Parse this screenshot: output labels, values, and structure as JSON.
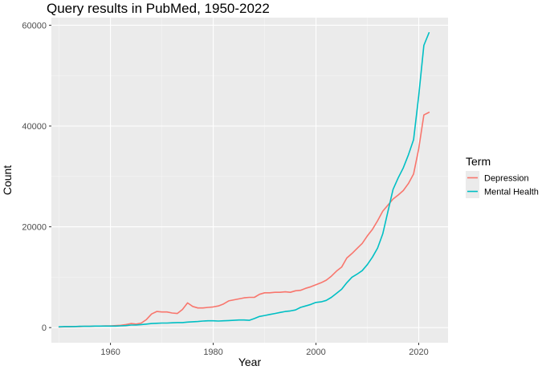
{
  "chart_data": {
    "type": "line",
    "title": "Query results in PubMed, 1950-2022",
    "xlabel": "Year",
    "ylabel": "Count",
    "xlim": [
      1948.5,
      2025.7
    ],
    "ylim": [
      -3000,
      61500
    ],
    "x_ticks": [
      1960,
      1980,
      2000,
      2020
    ],
    "y_ticks": [
      0,
      20000,
      40000,
      60000
    ],
    "y_tick_labels": [
      "0",
      "20000",
      "40000",
      "60000"
    ],
    "grid": true,
    "legend": {
      "title": "Term",
      "position": "right",
      "entries": [
        "Depression",
        "Mental Health"
      ]
    },
    "series": [
      {
        "name": "Depression",
        "color": "#f8766d",
        "x": [
          1950,
          1951,
          1952,
          1953,
          1954,
          1955,
          1956,
          1957,
          1958,
          1959,
          1960,
          1961,
          1962,
          1963,
          1964,
          1965,
          1966,
          1967,
          1968,
          1969,
          1970,
          1971,
          1972,
          1973,
          1974,
          1975,
          1976,
          1977,
          1978,
          1979,
          1980,
          1981,
          1982,
          1983,
          1984,
          1985,
          1986,
          1987,
          1988,
          1989,
          1990,
          1991,
          1992,
          1993,
          1994,
          1995,
          1996,
          1997,
          1998,
          1999,
          2000,
          2001,
          2002,
          2003,
          2004,
          2005,
          2006,
          2007,
          2008,
          2009,
          2010,
          2011,
          2012,
          2013,
          2014,
          2015,
          2016,
          2017,
          2018,
          2019,
          2020,
          2021,
          2022
        ],
        "y": [
          100,
          150,
          150,
          200,
          200,
          250,
          250,
          300,
          300,
          350,
          350,
          400,
          450,
          600,
          800,
          700,
          900,
          1600,
          2700,
          3200,
          3100,
          3100,
          2900,
          2800,
          3600,
          4900,
          4200,
          3900,
          3900,
          4000,
          4100,
          4300,
          4700,
          5300,
          5500,
          5700,
          5900,
          6000,
          6000,
          6600,
          6900,
          6900,
          7000,
          7000,
          7100,
          7000,
          7300,
          7400,
          7800,
          8100,
          8500,
          8900,
          9400,
          10200,
          11200,
          12000,
          13800,
          14700,
          15700,
          16700,
          18200,
          19500,
          21200,
          23100,
          24300,
          25500,
          26300,
          27200,
          28600,
          30500,
          35500,
          42200,
          42700
        ]
      },
      {
        "name": "Mental Health",
        "color": "#00bfc4",
        "x": [
          1950,
          1951,
          1952,
          1953,
          1954,
          1955,
          1956,
          1957,
          1958,
          1959,
          1960,
          1961,
          1962,
          1963,
          1964,
          1965,
          1966,
          1967,
          1968,
          1969,
          1970,
          1971,
          1972,
          1973,
          1974,
          1975,
          1976,
          1977,
          1978,
          1979,
          1980,
          1981,
          1982,
          1983,
          1984,
          1985,
          1986,
          1987,
          1988,
          1989,
          1990,
          1991,
          1992,
          1993,
          1994,
          1995,
          1996,
          1997,
          1998,
          1999,
          2000,
          2001,
          2002,
          2003,
          2004,
          2005,
          2006,
          2007,
          2008,
          2009,
          2010,
          2011,
          2012,
          2013,
          2014,
          2015,
          2016,
          2017,
          2018,
          2019,
          2020,
          2021,
          2022
        ],
        "y": [
          150,
          200,
          200,
          200,
          250,
          250,
          250,
          300,
          300,
          300,
          300,
          300,
          350,
          400,
          500,
          500,
          600,
          700,
          800,
          850,
          900,
          900,
          950,
          1000,
          1000,
          1100,
          1150,
          1200,
          1300,
          1350,
          1350,
          1300,
          1350,
          1400,
          1450,
          1500,
          1500,
          1450,
          1800,
          2200,
          2400,
          2600,
          2800,
          3000,
          3200,
          3300,
          3500,
          4000,
          4300,
          4600,
          5000,
          5100,
          5400,
          6000,
          6800,
          7600,
          8900,
          10000,
          10600,
          11300,
          12500,
          14000,
          15800,
          18600,
          23000,
          27400,
          29700,
          31700,
          34300,
          37300,
          46000,
          56000,
          58500
        ]
      }
    ]
  }
}
